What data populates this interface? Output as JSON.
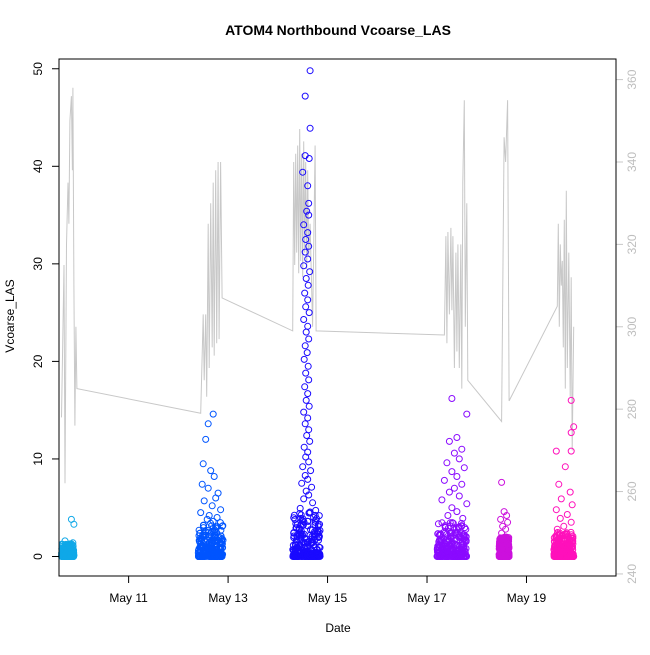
{
  "chart_data": {
    "type": "scatter",
    "title": "ATOM4 Northbound Vcoarse_LAS",
    "xlabel": "Date",
    "ylabel": "Vcoarse_LAS",
    "x_unit": "day of May",
    "xlim": [
      9.6,
      20.8
    ],
    "ylim": [
      -2,
      51
    ],
    "y2lim": [
      239.5,
      365
    ],
    "x_ticks": [
      {
        "x": 11,
        "label": "May 11"
      },
      {
        "x": 13,
        "label": "May 13"
      },
      {
        "x": 15,
        "label": "May 15"
      },
      {
        "x": 17,
        "label": "May 17"
      },
      {
        "x": 19,
        "label": "May 19"
      }
    ],
    "y_ticks": [
      0,
      10,
      20,
      30,
      40,
      50
    ],
    "y2_ticks": [
      240,
      260,
      280,
      300,
      320,
      340,
      360
    ],
    "grid": false,
    "legend": "none",
    "point_style": "open-circle",
    "point_series": [
      {
        "x_range": [
          9.65,
          9.9
        ],
        "color": "#0FA8E8",
        "bulk_max": 1.3,
        "points": [
          [
            9.85,
            3.8
          ],
          [
            9.9,
            3.3
          ],
          [
            9.72,
            1.6
          ],
          [
            9.8,
            1.2
          ],
          [
            9.88,
            1.4
          ],
          [
            9.75,
            0.9
          ],
          [
            9.82,
            0.7
          ],
          [
            9.7,
            0.5
          ]
        ]
      },
      {
        "x_range": [
          12.4,
          12.9
        ],
        "color": "#0055FF",
        "bulk_max": 3.5,
        "points": [
          [
            12.7,
            14.6
          ],
          [
            12.6,
            13.6
          ],
          [
            12.55,
            12.0
          ],
          [
            12.5,
            9.5
          ],
          [
            12.65,
            8.8
          ],
          [
            12.72,
            8.2
          ],
          [
            12.48,
            7.4
          ],
          [
            12.6,
            7.0
          ],
          [
            12.8,
            6.5
          ],
          [
            12.75,
            6.0
          ],
          [
            12.52,
            5.7
          ],
          [
            12.68,
            5.2
          ],
          [
            12.85,
            4.8
          ],
          [
            12.45,
            4.5
          ],
          [
            12.62,
            4.2
          ],
          [
            12.78,
            4.0
          ],
          [
            12.58,
            3.8
          ],
          [
            12.7,
            3.6
          ]
        ]
      },
      {
        "x_range": [
          14.3,
          14.85
        ],
        "color": "#1A0AFF",
        "bulk_max": 5,
        "points": [
          [
            14.65,
            49.8
          ],
          [
            14.55,
            47.2
          ],
          [
            14.65,
            43.9
          ],
          [
            14.55,
            41.1
          ],
          [
            14.63,
            40.8
          ],
          [
            14.5,
            39.4
          ],
          [
            14.6,
            38.0
          ],
          [
            14.62,
            36.2
          ],
          [
            14.58,
            35.4
          ],
          [
            14.62,
            35.0
          ],
          [
            14.52,
            34.0
          ],
          [
            14.6,
            33.2
          ],
          [
            14.56,
            32.5
          ],
          [
            14.62,
            31.8
          ],
          [
            14.55,
            31.2
          ],
          [
            14.6,
            30.5
          ],
          [
            14.52,
            29.8
          ],
          [
            14.64,
            29.2
          ],
          [
            14.57,
            28.5
          ],
          [
            14.61,
            27.8
          ],
          [
            14.54,
            27.0
          ],
          [
            14.6,
            26.3
          ],
          [
            14.56,
            25.6
          ],
          [
            14.63,
            25.0
          ],
          [
            14.52,
            24.3
          ],
          [
            14.6,
            23.6
          ],
          [
            14.57,
            23.0
          ],
          [
            14.62,
            22.3
          ],
          [
            14.55,
            21.6
          ],
          [
            14.59,
            20.9
          ],
          [
            14.53,
            20.2
          ],
          [
            14.61,
            19.5
          ],
          [
            14.56,
            18.8
          ],
          [
            14.62,
            18.1
          ],
          [
            14.54,
            17.4
          ],
          [
            14.6,
            16.7
          ],
          [
            14.57,
            16.0
          ],
          [
            14.63,
            15.4
          ],
          [
            14.52,
            14.8
          ],
          [
            14.6,
            14.2
          ],
          [
            14.55,
            13.6
          ],
          [
            14.62,
            13.0
          ],
          [
            14.58,
            12.4
          ],
          [
            14.64,
            11.8
          ],
          [
            14.53,
            11.2
          ],
          [
            14.6,
            10.7
          ],
          [
            14.56,
            10.2
          ],
          [
            14.62,
            9.7
          ],
          [
            14.5,
            9.2
          ],
          [
            14.66,
            8.8
          ],
          [
            14.55,
            8.3
          ],
          [
            14.6,
            7.9
          ],
          [
            14.48,
            7.5
          ],
          [
            14.68,
            7.1
          ],
          [
            14.57,
            6.7
          ],
          [
            14.62,
            6.3
          ],
          [
            14.52,
            5.9
          ],
          [
            14.7,
            5.5
          ]
        ]
      },
      {
        "x_range": [
          17.2,
          17.8
        ],
        "color": "#8A0AFF",
        "bulk_max": 3.5,
        "points": [
          [
            17.5,
            16.2
          ],
          [
            17.8,
            14.6
          ],
          [
            17.6,
            12.2
          ],
          [
            17.45,
            11.8
          ],
          [
            17.7,
            11.0
          ],
          [
            17.55,
            10.6
          ],
          [
            17.65,
            10.0
          ],
          [
            17.4,
            9.6
          ],
          [
            17.75,
            9.1
          ],
          [
            17.5,
            8.7
          ],
          [
            17.6,
            8.2
          ],
          [
            17.35,
            7.8
          ],
          [
            17.7,
            7.4
          ],
          [
            17.55,
            7.0
          ],
          [
            17.45,
            6.6
          ],
          [
            17.65,
            6.2
          ],
          [
            17.3,
            5.8
          ],
          [
            17.8,
            5.4
          ],
          [
            17.5,
            5.0
          ],
          [
            17.6,
            4.6
          ],
          [
            17.42,
            4.2
          ],
          [
            17.72,
            3.9
          ]
        ]
      },
      {
        "x_range": [
          18.45,
          18.65
        ],
        "color": "#CC11DD",
        "bulk_max": 2,
        "points": [
          [
            18.5,
            7.6
          ],
          [
            18.55,
            4.6
          ],
          [
            18.6,
            4.2
          ],
          [
            18.48,
            3.8
          ],
          [
            18.62,
            3.5
          ],
          [
            18.52,
            3.1
          ],
          [
            18.58,
            2.8
          ],
          [
            18.5,
            2.4
          ]
        ]
      },
      {
        "x_range": [
          19.55,
          19.95
        ],
        "color": "#FF11BB",
        "bulk_max": 2.5,
        "points": [
          [
            19.9,
            16.0
          ],
          [
            19.95,
            13.3
          ],
          [
            19.9,
            12.7
          ],
          [
            19.6,
            10.8
          ],
          [
            19.9,
            10.8
          ],
          [
            19.78,
            9.2
          ],
          [
            19.65,
            7.4
          ],
          [
            19.88,
            6.6
          ],
          [
            19.7,
            5.9
          ],
          [
            19.92,
            5.3
          ],
          [
            19.6,
            4.8
          ],
          [
            19.82,
            4.3
          ],
          [
            19.68,
            3.9
          ],
          [
            19.9,
            3.5
          ],
          [
            19.75,
            3.1
          ],
          [
            19.62,
            2.8
          ]
        ]
      }
    ],
    "secondary_line": {
      "color": "#C8C8C8",
      "points": [
        [
          9.65,
          278
        ],
        [
          9.7,
          315
        ],
        [
          9.72,
          262
        ],
        [
          9.75,
          320
        ],
        [
          9.78,
          335
        ],
        [
          9.8,
          325
        ],
        [
          9.82,
          350
        ],
        [
          9.85,
          356
        ],
        [
          9.87,
          338
        ],
        [
          9.88,
          358
        ],
        [
          9.9,
          310
        ],
        [
          9.92,
          276
        ],
        [
          9.94,
          300
        ],
        [
          9.96,
          285
        ],
        [
          12.45,
          279
        ],
        [
          12.5,
          303
        ],
        [
          12.52,
          287
        ],
        [
          12.55,
          303
        ],
        [
          12.57,
          283
        ],
        [
          12.6,
          325
        ],
        [
          12.62,
          290
        ],
        [
          12.65,
          330
        ],
        [
          12.68,
          295
        ],
        [
          12.7,
          335
        ],
        [
          12.72,
          293
        ],
        [
          12.75,
          338
        ],
        [
          12.77,
          296
        ],
        [
          12.8,
          340
        ],
        [
          12.82,
          297
        ],
        [
          12.85,
          340
        ],
        [
          12.88,
          307
        ],
        [
          14.3,
          299
        ],
        [
          14.32,
          340
        ],
        [
          14.34,
          315
        ],
        [
          14.36,
          342
        ],
        [
          14.38,
          318
        ],
        [
          14.4,
          344
        ],
        [
          14.42,
          313
        ],
        [
          14.44,
          348
        ],
        [
          14.46,
          316
        ],
        [
          14.48,
          342
        ],
        [
          14.5,
          312
        ],
        [
          14.52,
          345
        ],
        [
          14.54,
          318
        ],
        [
          14.56,
          340
        ],
        [
          14.58,
          314
        ],
        [
          14.6,
          338
        ],
        [
          14.62,
          317
        ],
        [
          14.65,
          325
        ],
        [
          14.7,
          300
        ],
        [
          14.75,
          344
        ],
        [
          14.77,
          299
        ],
        [
          17.35,
          298
        ],
        [
          17.38,
          322
        ],
        [
          17.4,
          296
        ],
        [
          17.42,
          323
        ],
        [
          17.45,
          303
        ],
        [
          17.48,
          324
        ],
        [
          17.5,
          304
        ],
        [
          17.52,
          322
        ],
        [
          17.55,
          290
        ],
        [
          17.58,
          318
        ],
        [
          17.6,
          294
        ],
        [
          17.62,
          320
        ],
        [
          17.65,
          290
        ],
        [
          17.68,
          320
        ],
        [
          17.7,
          285
        ],
        [
          17.72,
          335
        ],
        [
          17.75,
          355
        ],
        [
          17.77,
          300
        ],
        [
          17.8,
          330
        ],
        [
          17.82,
          287
        ],
        [
          18.5,
          277
        ],
        [
          18.55,
          346
        ],
        [
          18.58,
          340
        ],
        [
          18.62,
          355
        ],
        [
          18.65,
          282
        ],
        [
          19.62,
          305
        ],
        [
          19.64,
          325
        ],
        [
          19.66,
          300
        ],
        [
          19.68,
          320
        ],
        [
          19.7,
          310
        ],
        [
          19.72,
          316
        ],
        [
          19.74,
          295
        ],
        [
          19.76,
          326
        ],
        [
          19.78,
          285
        ],
        [
          19.8,
          333
        ],
        [
          19.82,
          290
        ],
        [
          19.85,
          318
        ],
        [
          19.88,
          283
        ],
        [
          19.9,
          312
        ],
        [
          19.92,
          270
        ],
        [
          19.95,
          300
        ]
      ]
    }
  }
}
